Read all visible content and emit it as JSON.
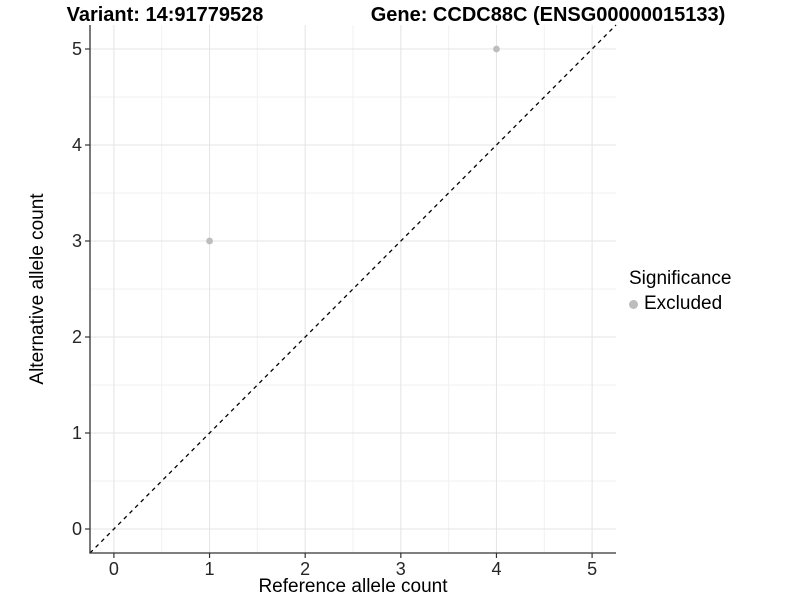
{
  "titles": {
    "variant": "Variant: 14:91779528",
    "gene": "Gene: CCDC88C (ENSG00000015133)"
  },
  "chart_data": {
    "type": "scatter",
    "title_left": "Variant: 14:91779528",
    "title_right": "Gene: CCDC88C (ENSG00000015133)",
    "xlabel": "Reference allele count",
    "ylabel": "Alternative allele count",
    "xlim": [
      -0.25,
      5.25
    ],
    "ylim": [
      -0.25,
      5.25
    ],
    "xticks": [
      0,
      1,
      2,
      3,
      4,
      5
    ],
    "yticks": [
      0,
      1,
      2,
      3,
      4,
      5
    ],
    "xminor": [
      0.5,
      1.5,
      2.5,
      3.5,
      4.5
    ],
    "yminor": [
      0.5,
      1.5,
      2.5,
      3.5,
      4.5
    ],
    "grid": true,
    "series": [
      {
        "name": "Excluded",
        "color": "#bdbdbd",
        "points": [
          {
            "x": 1,
            "y": 3
          },
          {
            "x": 4,
            "y": 5
          }
        ]
      }
    ],
    "reference_line": {
      "equation": "y = x",
      "style": "dashed",
      "color": "#000000"
    },
    "legend": {
      "title": "Significance",
      "position": "right",
      "entries": [
        {
          "label": "Excluded",
          "color": "#bdbdbd"
        }
      ]
    }
  },
  "colors": {
    "background": "#ffffff",
    "major_grid": "#e4e4e4",
    "minor_grid": "#f1f1f1",
    "axis_line": "#333333",
    "tick_mark": "#333333",
    "tick_text": "#262626",
    "point": "#bdbdbd"
  }
}
